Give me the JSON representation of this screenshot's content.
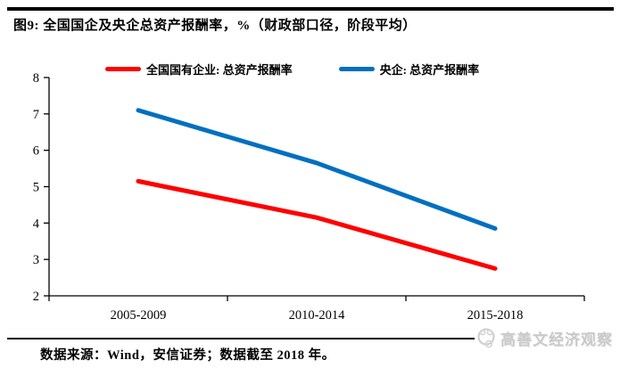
{
  "header": {
    "title": "图9: 全国国企及央企总资产报酬率，%（财政部口径，阶段平均）"
  },
  "chart_data": {
    "type": "line",
    "title": "全国国企及央企总资产报酬率，%（财政部口径，阶段平均）",
    "categories": [
      "2005-2009",
      "2010-2014",
      "2015-2018"
    ],
    "series": [
      {
        "name": "全国国有企业: 总资产报酬率",
        "color": "#fe0000",
        "values": [
          5.15,
          4.15,
          2.75
        ]
      },
      {
        "name": "央企: 总资产报酬率",
        "color": "#0070c0",
        "values": [
          7.1,
          5.65,
          3.85
        ]
      }
    ],
    "xlabel": "",
    "ylabel": "",
    "ylim": [
      2,
      8
    ],
    "yticks": [
      2,
      3,
      4,
      5,
      6,
      7,
      8
    ],
    "grid": false,
    "legend_position": "top"
  },
  "footer": {
    "source_text": "数据来源：Wind，安信证券；数据截至 2018 年。"
  },
  "watermark": {
    "icon": "panda-face-icon",
    "text": "高善文经济观察"
  }
}
